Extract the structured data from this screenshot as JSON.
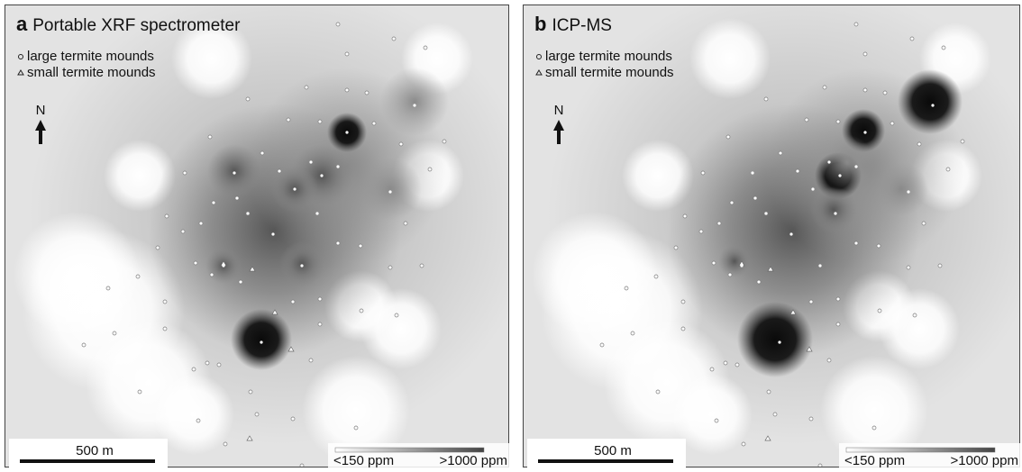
{
  "panels": [
    {
      "label": "a",
      "title": "Portable XRF spectrometer",
      "legend": [
        "large termite mounds",
        "small termite mounds"
      ],
      "north": "N",
      "scale_bar": "500 m",
      "colorbar": {
        "min": "<150 ppm",
        "max": ">1000 ppm"
      }
    },
    {
      "label": "b",
      "title": "ICP-MS",
      "legend": [
        "large termite mounds",
        "small termite mounds"
      ],
      "north": "N",
      "scale_bar": "500 m",
      "colorbar": {
        "min": "<150 ppm",
        "max": ">1000 ppm"
      }
    }
  ]
}
